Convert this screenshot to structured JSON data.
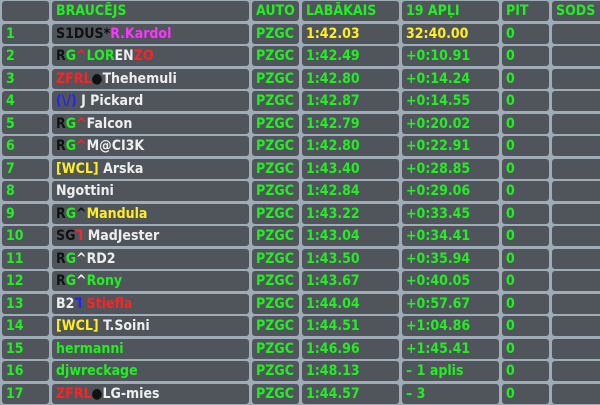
{
  "colors": {
    "background": "#9eacb8",
    "cell": "#50555c",
    "default_text": "#22ee22",
    "leader_text": "#ffee22"
  },
  "headers": [
    "",
    "BRAUCĒJS",
    "AUTO",
    "LABĀKAIS",
    "19 APĻI",
    "PIT",
    "SODS"
  ],
  "rows": [
    {
      "pos": "1",
      "name": [
        {
          "t": "S1DUS",
          "c": "#111111"
        },
        {
          "t": "*",
          "c": "#111111"
        },
        {
          "t": "R.Kardol",
          "c": "#ff33ff"
        }
      ],
      "car": "PZGC",
      "best": "1:42.03",
      "time": "32:40.00",
      "pit": "0",
      "penalty": "",
      "highlight": true
    },
    {
      "pos": "2",
      "name": [
        {
          "t": "R",
          "c": "#111111"
        },
        {
          "t": "G",
          "c": "#22ee22"
        },
        {
          "t": "^",
          "c": "#ff2222"
        },
        {
          "t": "LOR",
          "c": "#22ee22"
        },
        {
          "t": "EN",
          "c": "#eeeeee"
        },
        {
          "t": "ZO",
          "c": "#ff2222"
        }
      ],
      "car": "PZGC",
      "best": "1:42.49",
      "time": "+0:10.91",
      "pit": "0",
      "penalty": ""
    },
    {
      "pos": "3",
      "name": [
        {
          "t": "ZFRL",
          "c": "#ff2222"
        },
        {
          "t": "●",
          "c": "#111111"
        },
        {
          "t": "Thehemuli",
          "c": "#eeeeee"
        }
      ],
      "car": "PZGC",
      "best": "1:42.80",
      "time": "+0:14.24",
      "pit": "0",
      "penalty": ""
    },
    {
      "pos": "4",
      "name": [
        {
          "t": "(\\/)",
          "c": "#2222ff"
        },
        {
          "t": " J Pickard",
          "c": "#eeeeee"
        }
      ],
      "car": "PZGC",
      "best": "1:42.87",
      "time": "+0:14.55",
      "pit": "0",
      "penalty": ""
    },
    {
      "pos": "5",
      "name": [
        {
          "t": "R",
          "c": "#111111"
        },
        {
          "t": "G",
          "c": "#22ee22"
        },
        {
          "t": "^",
          "c": "#ff2222"
        },
        {
          "t": "Falcon",
          "c": "#eeeeee"
        }
      ],
      "car": "PZGC",
      "best": "1:42.79",
      "time": "+0:20.02",
      "pit": "0",
      "penalty": ""
    },
    {
      "pos": "6",
      "name": [
        {
          "t": "R",
          "c": "#111111"
        },
        {
          "t": "G",
          "c": "#22ee22"
        },
        {
          "t": "^",
          "c": "#ff2222"
        },
        {
          "t": "M@CI3K",
          "c": "#eeeeee"
        }
      ],
      "car": "PZGC",
      "best": "1:42.80",
      "time": "+0:22.91",
      "pit": "0",
      "penalty": ""
    },
    {
      "pos": "7",
      "name": [
        {
          "t": "[WCL]",
          "c": "#ffee22"
        },
        {
          "t": " Arska",
          "c": "#eeeeee"
        }
      ],
      "car": "PZGC",
      "best": "1:43.40",
      "time": "+0:28.85",
      "pit": "0",
      "penalty": ""
    },
    {
      "pos": "8",
      "name": [
        {
          "t": "Ngottini",
          "c": "#eeeeee"
        }
      ],
      "car": "PZGC",
      "best": "1:42.84",
      "time": "+0:29.06",
      "pit": "0",
      "penalty": ""
    },
    {
      "pos": "9",
      "name": [
        {
          "t": "R",
          "c": "#111111"
        },
        {
          "t": "G",
          "c": "#22ee22"
        },
        {
          "t": "^",
          "c": "#111111"
        },
        {
          "t": "Mandula",
          "c": "#ffee22"
        }
      ],
      "car": "PZGC",
      "best": "1:43.22",
      "time": "+0:33.45",
      "pit": "0",
      "penalty": ""
    },
    {
      "pos": "10",
      "name": [
        {
          "t": "SG",
          "c": "#111111"
        },
        {
          "t": "ᒣ",
          "c": "#ff2222"
        },
        {
          "t": " MadJester",
          "c": "#eeeeee"
        }
      ],
      "car": "PZGC",
      "best": "1:43.04",
      "time": "+0:34.41",
      "pit": "0",
      "penalty": ""
    },
    {
      "pos": "11",
      "name": [
        {
          "t": "R",
          "c": "#111111"
        },
        {
          "t": "G",
          "c": "#22ee22"
        },
        {
          "t": "^",
          "c": "#eeeeee"
        },
        {
          "t": "RD2",
          "c": "#eeeeee"
        }
      ],
      "car": "PZGC",
      "best": "1:43.50",
      "time": "+0:35.94",
      "pit": "0",
      "penalty": ""
    },
    {
      "pos": "12",
      "name": [
        {
          "t": "R",
          "c": "#111111"
        },
        {
          "t": "G",
          "c": "#22ee22"
        },
        {
          "t": "^",
          "c": "#eeeeee"
        },
        {
          "t": "Rony",
          "c": "#22ee22"
        }
      ],
      "car": "PZGC",
      "best": "1:43.67",
      "time": "+0:40.05",
      "pit": "0",
      "penalty": ""
    },
    {
      "pos": "13",
      "name": [
        {
          "t": "B2",
          "c": "#eeeeee"
        },
        {
          "t": "ᒣ",
          "c": "#2222ff"
        },
        {
          "t": " Stiefla",
          "c": "#ff2222"
        }
      ],
      "car": "PZGC",
      "best": "1:44.04",
      "time": "+0:57.67",
      "pit": "0",
      "penalty": ""
    },
    {
      "pos": "14",
      "name": [
        {
          "t": "[WCL]",
          "c": "#ffee22"
        },
        {
          "t": " T.Soini",
          "c": "#eeeeee"
        }
      ],
      "car": "PZGC",
      "best": "1:44.51",
      "time": "+1:04.86",
      "pit": "0",
      "penalty": ""
    },
    {
      "pos": "15",
      "name": [
        {
          "t": "hermanni",
          "c": "#22ee22"
        }
      ],
      "car": "PZGC",
      "best": "1:46.96",
      "time": "+1:45.41",
      "pit": "0",
      "penalty": ""
    },
    {
      "pos": "16",
      "name": [
        {
          "t": "djwreckage",
          "c": "#22ee22"
        }
      ],
      "car": "PZGC",
      "best": "1:48.13",
      "time": "– 1 aplis",
      "pit": "0",
      "penalty": ""
    },
    {
      "pos": "17",
      "name": [
        {
          "t": "ZFRL",
          "c": "#ff2222"
        },
        {
          "t": "●",
          "c": "#111111"
        },
        {
          "t": "LG-mies",
          "c": "#eeeeee"
        }
      ],
      "car": "PZGC",
      "best": "1:44.57",
      "time": "– 3",
      "pit": "0",
      "penalty": ""
    }
  ]
}
